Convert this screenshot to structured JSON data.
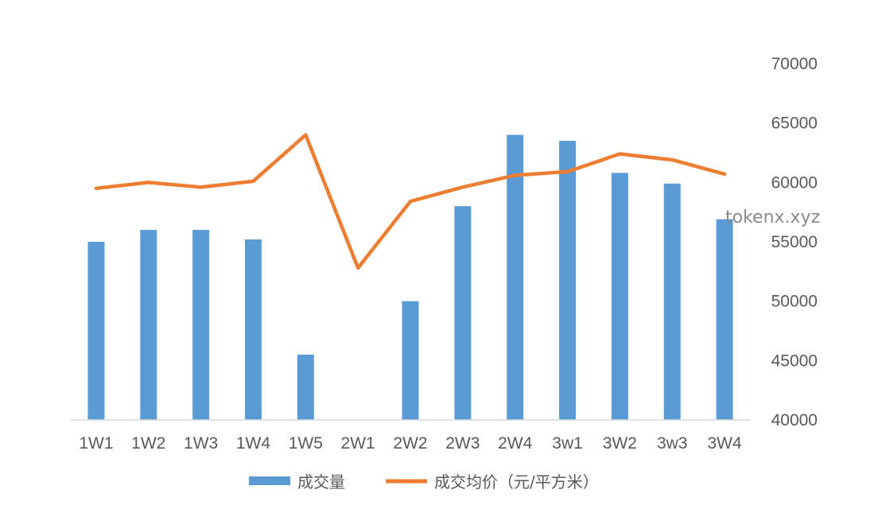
{
  "watermark": "tokenx.xyz",
  "chart_data": {
    "type": "bar",
    "categories": [
      "1W1",
      "1W2",
      "1W3",
      "1W4",
      "1W5",
      "2W1",
      "2W2",
      "2W3",
      "2W4",
      "3w1",
      "3W2",
      "3w3",
      "3W4"
    ],
    "right_axis": {
      "ylim": [
        40000,
        70000
      ],
      "ticks": [
        "70000",
        "65000",
        "60000",
        "55000",
        "50000",
        "45000",
        "40000"
      ]
    },
    "series": [
      {
        "name": "成交量",
        "type": "bar",
        "color": "#5B9BD5",
        "values": [
          55000,
          56000,
          56000,
          55200,
          45500,
          40000,
          50000,
          58000,
          64000,
          63500,
          60800,
          59900,
          56900
        ]
      },
      {
        "name": "成交均价（元/平方米）",
        "type": "line",
        "color": "#ED7D31",
        "values": [
          59500,
          60000,
          59600,
          60100,
          64000,
          52800,
          58400,
          59600,
          60600,
          60900,
          62400,
          61900,
          60700
        ]
      }
    ],
    "legend_position": "bottom",
    "grid": false
  }
}
